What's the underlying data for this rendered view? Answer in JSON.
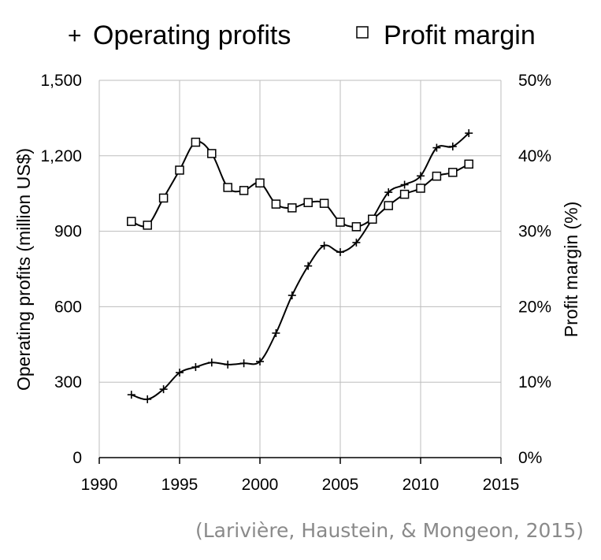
{
  "legend": {
    "profits_symbol": "+",
    "profits_label": "Operating profits",
    "margin_label": "Profit margin"
  },
  "citation": "(Larivière, Haustein, & Mongeon, 2015)",
  "chart_data": {
    "type": "line",
    "xlabel": "",
    "ylabel": "Operating profits (million US$)",
    "y2label": "Profit margin (%)",
    "xlim": [
      1990,
      2015
    ],
    "ylim": [
      0,
      1500
    ],
    "y2lim": [
      0,
      50
    ],
    "x_ticks": [
      "1990",
      "1995",
      "2000",
      "2005",
      "2010",
      "2015"
    ],
    "y_ticks": [
      "0",
      "300",
      "600",
      "900",
      "1,200",
      "1,500"
    ],
    "y2_ticks": [
      "0%",
      "10%",
      "20%",
      "30%",
      "40%",
      "50%"
    ],
    "grid": true,
    "legend_position": "top",
    "x": [
      1992,
      1993,
      1994,
      1995,
      1996,
      1997,
      1998,
      1999,
      2000,
      2001,
      2002,
      2003,
      2004,
      2005,
      2006,
      2007,
      2008,
      2009,
      2010,
      2011,
      2012,
      2013
    ],
    "series": [
      {
        "name": "Operating profits",
        "axis": "left",
        "marker": "plus",
        "values": [
          250,
          232,
          272,
          338,
          360,
          378,
          370,
          375,
          382,
          495,
          645,
          762,
          843,
          817,
          855,
          950,
          1055,
          1085,
          1120,
          1232,
          1237,
          1290
        ]
      },
      {
        "name": "Profit margin",
        "axis": "right",
        "marker": "square",
        "values": [
          31.3,
          30.8,
          34.4,
          38.1,
          41.8,
          40.3,
          35.8,
          35.4,
          36.4,
          33.6,
          33.1,
          33.8,
          33.7,
          31.2,
          30.6,
          31.6,
          33.4,
          34.9,
          35.7,
          37.3,
          37.8,
          38.9
        ]
      }
    ]
  }
}
